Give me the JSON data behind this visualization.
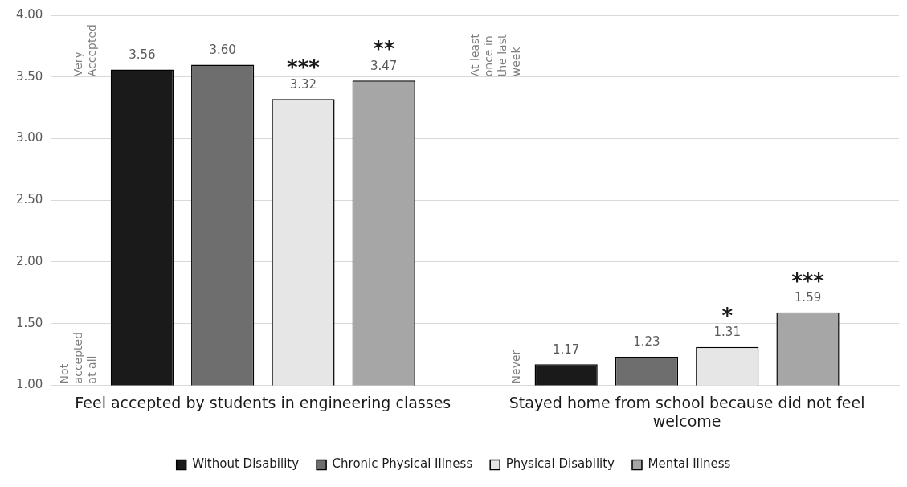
{
  "chart_data": {
    "type": "bar",
    "categories": [
      "Feel accepted by students in engineering classes",
      "Stayed home from school because did not feel welcome"
    ],
    "series": [
      {
        "name": "Without Disability",
        "color": "#1a1a1a",
        "values": [
          3.56,
          1.17
        ],
        "value_labels": [
          "3.56",
          "1.17"
        ]
      },
      {
        "name": "Chronic Physical Illness",
        "color": "#6e6e6e",
        "values": [
          3.6,
          1.23
        ],
        "value_labels": [
          "3.60",
          "1.23"
        ]
      },
      {
        "name": "Physical Disability",
        "color": "#e6e6e6",
        "values": [
          3.32,
          1.31
        ],
        "value_labels": [
          "3.32",
          "1.31"
        ]
      },
      {
        "name": "Mental Illness",
        "color": "#a6a6a6",
        "values": [
          3.47,
          1.59
        ],
        "value_labels": [
          "3.47",
          "1.59"
        ]
      }
    ],
    "ylim": [
      1,
      4
    ],
    "yticks": [
      {
        "value": 1,
        "label": "1.00"
      },
      {
        "value": 1.5,
        "label": "1.50"
      },
      {
        "value": 2,
        "label": "2.00"
      },
      {
        "value": 2.5,
        "label": "2.50"
      },
      {
        "value": 3,
        "label": "3.00"
      },
      {
        "value": 3.5,
        "label": "3.50"
      },
      {
        "value": 4,
        "label": "4.00"
      }
    ],
    "grid": "y",
    "legend": "bottom",
    "annotations": [
      "***",
      "**",
      "*",
      "***",
      "Very Accepted",
      "Not accepted at all",
      "At least once in the last week",
      "Never"
    ]
  }
}
